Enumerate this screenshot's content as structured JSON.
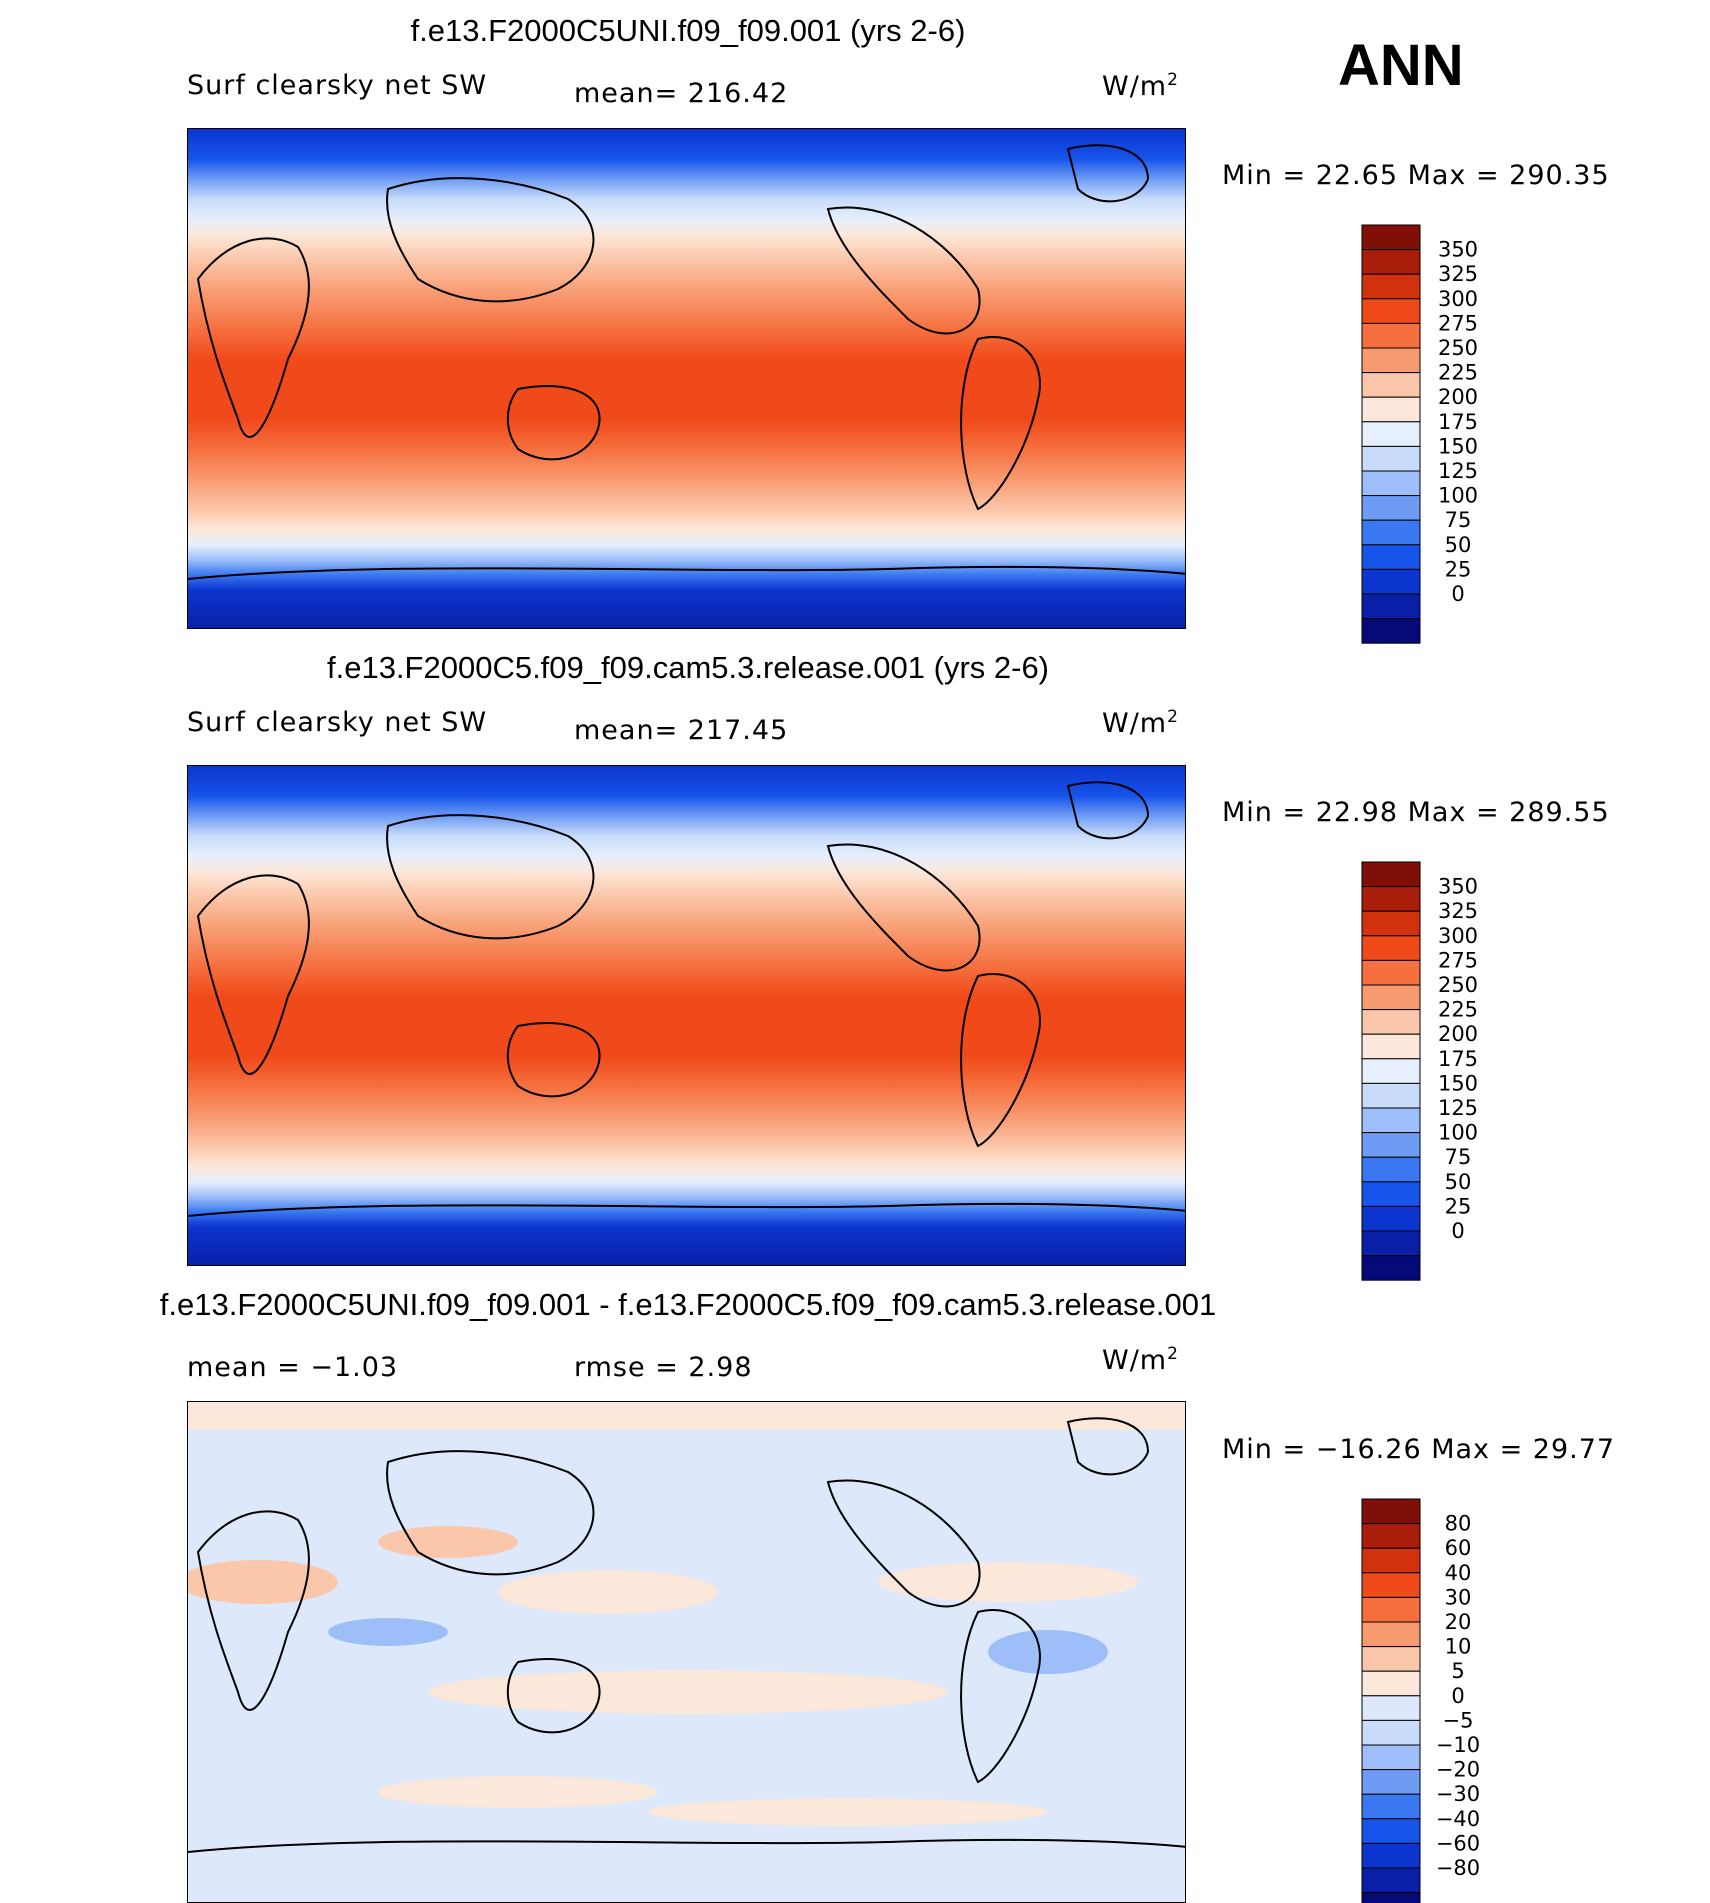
{
  "season": "ANN",
  "units": "W/m",
  "units_sup": "2",
  "panels": [
    {
      "title": "f.e13.F2000C5UNI.f09_f09.001 (yrs 2-6)",
      "variable": "Surf clearsky net SW",
      "stat": "mean= 216.42",
      "minmax": "Min =   22.65 Max = 290.35"
    },
    {
      "title": "f.e13.F2000C5.f09_f09.cam5.3.release.001 (yrs 2-6)",
      "variable": "Surf clearsky net SW",
      "stat": "mean= 217.45",
      "minmax": "Min =   22.98 Max = 289.55"
    },
    {
      "title": "f.e13.F2000C5UNI.f09_f09.001 - f.e13.F2000C5.f09_f09.cam5.3.release.001",
      "stat_mean": "mean =   −1.03",
      "stat_rmse": "rmse =     2.98",
      "minmax": "Min = −16.26 Max =   29.77"
    }
  ],
  "chart_data": [
    {
      "type": "heatmap",
      "title": "f.e13.F2000C5UNI.f09_f09.001 (yrs 2-6)",
      "variable": "Surf clearsky net SW",
      "units": "W/m2",
      "mean": 216.42,
      "min": 22.65,
      "max": 290.35,
      "colorbar_levels": [
        0,
        25,
        50,
        75,
        100,
        125,
        150,
        175,
        200,
        225,
        250,
        275,
        300,
        325,
        350
      ],
      "colorbar_colors": [
        "#050a78",
        "#0a1fa8",
        "#0c35cf",
        "#1654ea",
        "#3a78f2",
        "#6e9cf5",
        "#9dbef8",
        "#c8dcfa",
        "#e6effc",
        "#fce8da",
        "#fbc7aa",
        "#f89a70",
        "#f6703f",
        "#f04a1a",
        "#d2320e",
        "#a81e0a",
        "#7f0f07"
      ]
    },
    {
      "type": "heatmap",
      "title": "f.e13.F2000C5.f09_f09.cam5.3.release.001 (yrs 2-6)",
      "variable": "Surf clearsky net SW",
      "units": "W/m2",
      "mean": 217.45,
      "min": 22.98,
      "max": 289.55,
      "colorbar_levels": [
        0,
        25,
        50,
        75,
        100,
        125,
        150,
        175,
        200,
        225,
        250,
        275,
        300,
        325,
        350
      ],
      "colorbar_colors": [
        "#050a78",
        "#0a1fa8",
        "#0c35cf",
        "#1654ea",
        "#3a78f2",
        "#6e9cf5",
        "#9dbef8",
        "#c8dcfa",
        "#e6effc",
        "#fce8da",
        "#fbc7aa",
        "#f89a70",
        "#f6703f",
        "#f04a1a",
        "#d2320e",
        "#a81e0a",
        "#7f0f07"
      ]
    },
    {
      "type": "heatmap",
      "title": "f.e13.F2000C5UNI.f09_f09.001 - f.e13.F2000C5.f09_f09.cam5.3.release.001",
      "units": "W/m2",
      "mean": -1.03,
      "rmse": 2.98,
      "min": -16.26,
      "max": 29.77,
      "colorbar_levels": [
        80,
        60,
        40,
        30,
        20,
        10,
        5,
        0,
        -5,
        -10,
        -20,
        -30,
        -40,
        -60,
        -80
      ],
      "colorbar_labels": [
        "80",
        "60",
        "40",
        "30",
        "20",
        "10",
        "5",
        "0",
        "−5",
        "−10",
        "−20",
        "−30",
        "−40",
        "−60",
        "−80"
      ],
      "colorbar_colors": [
        "#050a78",
        "#0a1fa8",
        "#0c35cf",
        "#1654ea",
        "#3a78f2",
        "#6e9cf5",
        "#9dbef8",
        "#c8dcfa",
        "#dde9fb",
        "#fce8da",
        "#fbc7aa",
        "#f89a70",
        "#f6703f",
        "#f04a1a",
        "#d2320e",
        "#a81e0a",
        "#7f0f07"
      ]
    }
  ]
}
